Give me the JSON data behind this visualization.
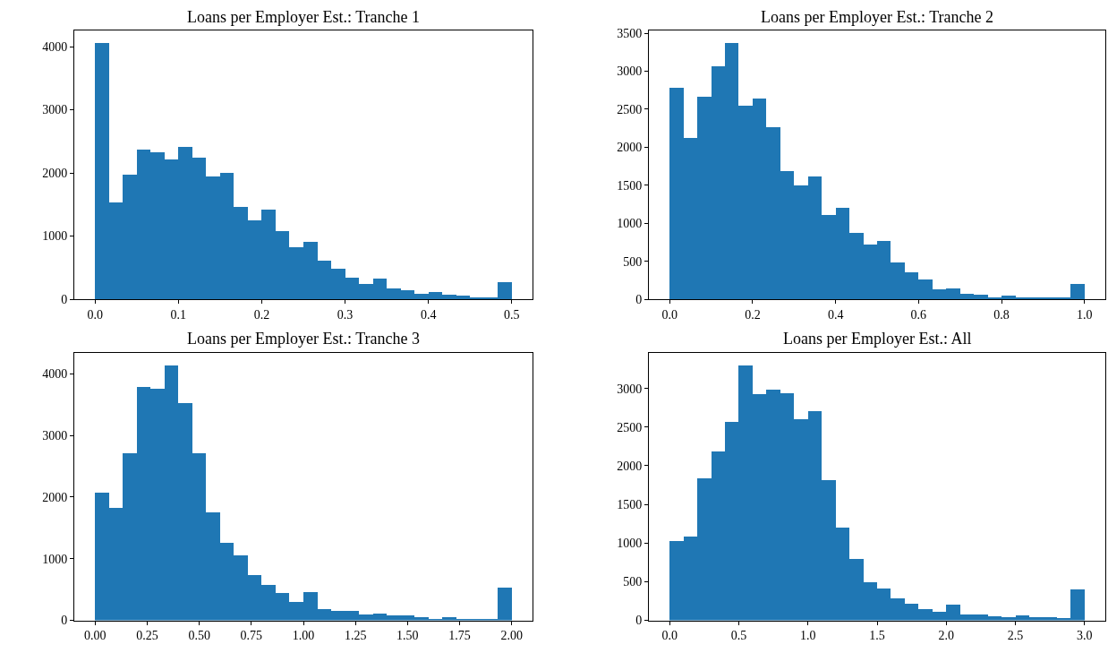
{
  "chart_data": [
    {
      "type": "histogram",
      "title": "Loans per Employer Est.: Tranche 1",
      "color": "#1f77b4",
      "bins": [
        0.0,
        0.016667,
        0.033333,
        0.05,
        0.066667,
        0.083333,
        0.1,
        0.116667,
        0.133333,
        0.15,
        0.166667,
        0.183333,
        0.2,
        0.216667,
        0.233333,
        0.25,
        0.266667,
        0.283333,
        0.3,
        0.316667,
        0.333333,
        0.35,
        0.366667,
        0.383333,
        0.4,
        0.416667,
        0.433333,
        0.45,
        0.466667,
        0.483333,
        0.5
      ],
      "values": [
        4050,
        1530,
        1960,
        2360,
        2320,
        2210,
        2410,
        2230,
        1940,
        1990,
        1450,
        1240,
        1410,
        1070,
        810,
        900,
        600,
        480,
        340,
        230,
        320,
        170,
        130,
        80,
        110,
        60,
        50,
        20,
        20,
        260
      ],
      "xlim": [
        -0.025,
        0.525
      ],
      "ylim": [
        0,
        4250
      ],
      "xticks": [
        {
          "value": 0,
          "label": "0.0"
        },
        0.1,
        0.2,
        0.3,
        0.4,
        0.5
      ],
      "yticks": [
        0,
        1000,
        2000,
        3000,
        4000
      ]
    },
    {
      "type": "histogram",
      "title": "Loans per Employer Est.: Tranche 2",
      "color": "#1f77b4",
      "bins": [
        0.0,
        0.033333,
        0.066667,
        0.1,
        0.133333,
        0.166667,
        0.2,
        0.233333,
        0.266667,
        0.3,
        0.333333,
        0.366667,
        0.4,
        0.433333,
        0.466667,
        0.5,
        0.533333,
        0.566667,
        0.6,
        0.633333,
        0.666667,
        0.7,
        0.733333,
        0.766667,
        0.8,
        0.833333,
        0.866667,
        0.9,
        0.933333,
        0.966667,
        1.0
      ],
      "values": [
        2780,
        2120,
        2660,
        3060,
        3360,
        2540,
        2630,
        2260,
        1680,
        1490,
        1610,
        1100,
        1200,
        870,
        710,
        760,
        480,
        350,
        250,
        120,
        140,
        70,
        50,
        20,
        40,
        10,
        10,
        10,
        10,
        190
      ],
      "xlim": [
        -0.05,
        1.05
      ],
      "ylim": [
        0,
        3530
      ],
      "xticks": [
        {
          "value": 0,
          "label": "0.0"
        },
        0.2,
        0.4,
        0.6,
        0.8,
        {
          "value": 1,
          "label": "1.0"
        }
      ],
      "yticks": [
        0,
        500,
        1000,
        1500,
        2000,
        2500,
        3000,
        3500
      ]
    },
    {
      "type": "histogram",
      "title": "Loans per Employer Est.: Tranche 3",
      "color": "#1f77b4",
      "bins": [
        0.0,
        0.066667,
        0.133333,
        0.2,
        0.266667,
        0.333333,
        0.4,
        0.466667,
        0.533333,
        0.6,
        0.666667,
        0.733333,
        0.8,
        0.866667,
        0.933333,
        1.0,
        1.066667,
        1.133333,
        1.2,
        1.266667,
        1.333333,
        1.4,
        1.466667,
        1.533333,
        1.6,
        1.666667,
        1.733333,
        1.8,
        1.866667,
        1.933333,
        2.0
      ],
      "values": [
        2070,
        1820,
        2710,
        3790,
        3760,
        4130,
        3530,
        2710,
        1750,
        1260,
        1050,
        740,
        570,
        440,
        300,
        460,
        190,
        160,
        160,
        90,
        110,
        80,
        80,
        50,
        30,
        50,
        30,
        30,
        30,
        530
      ],
      "xlim": [
        -0.1,
        2.1
      ],
      "ylim": [
        0,
        4340
      ],
      "xticks": [
        {
          "value": 0,
          "label": "0.00"
        },
        0.25,
        {
          "value": 0.5,
          "label": "0.50"
        },
        0.75,
        {
          "value": 1,
          "label": "1.00"
        },
        1.25,
        {
          "value": 1.5,
          "label": "1.50"
        },
        1.75,
        {
          "value": 2,
          "label": "2.00"
        }
      ],
      "yticks": [
        0,
        1000,
        2000,
        3000,
        4000
      ]
    },
    {
      "type": "histogram",
      "title": "Loans per Employer Est.: All",
      "color": "#1f77b4",
      "bins": [
        0.0,
        0.1,
        0.2,
        0.3,
        0.4,
        0.5,
        0.6,
        0.7,
        0.8,
        0.9,
        1.0,
        1.1,
        1.2,
        1.3,
        1.4,
        1.5,
        1.6,
        1.7,
        1.8,
        1.9,
        2.0,
        2.1,
        2.2,
        2.3,
        2.4,
        2.5,
        2.6,
        2.7,
        2.8,
        2.9,
        3.0
      ],
      "values": [
        1030,
        1080,
        1840,
        2190,
        2570,
        3300,
        2930,
        2980,
        2940,
        2600,
        2710,
        1810,
        1200,
        800,
        490,
        410,
        280,
        210,
        150,
        110,
        200,
        80,
        80,
        50,
        40,
        60,
        40,
        40,
        30,
        400
      ],
      "xlim": [
        -0.15,
        3.15
      ],
      "ylim": [
        0,
        3460
      ],
      "xticks": [
        {
          "value": 0,
          "label": "0.0"
        },
        0.5,
        {
          "value": 1,
          "label": "1.0"
        },
        1.5,
        {
          "value": 2,
          "label": "2.0"
        },
        2.5,
        {
          "value": 3,
          "label": "3.0"
        }
      ],
      "yticks": [
        0,
        500,
        1000,
        1500,
        2000,
        2500,
        3000
      ]
    }
  ]
}
